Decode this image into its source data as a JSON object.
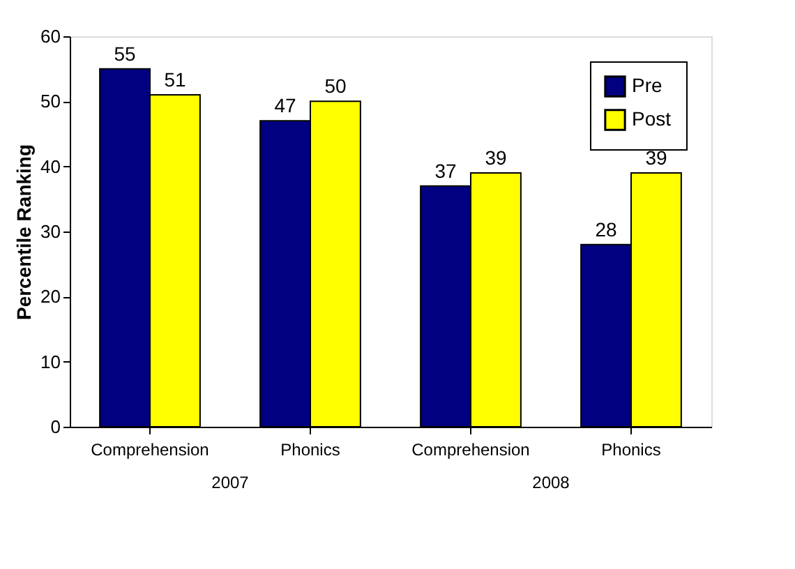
{
  "chart_data": {
    "type": "bar",
    "ylabel": "Percentile Ranking",
    "categories": [
      "Comprehension",
      "Phonics",
      "Comprehension",
      "Phonics"
    ],
    "series": [
      {
        "name": "Pre",
        "color": "#000080",
        "values": [
          55,
          47,
          37,
          28
        ]
      },
      {
        "name": "Post",
        "color": "#ffff00",
        "values": [
          51,
          50,
          39,
          39
        ]
      }
    ],
    "ylim": [
      0,
      60
    ],
    "yticks": [
      0,
      10,
      20,
      30,
      40,
      50,
      60
    ],
    "data_labels": true,
    "legend": "top right",
    "grid": false,
    "annotations": [
      "2007",
      "2008"
    ]
  }
}
